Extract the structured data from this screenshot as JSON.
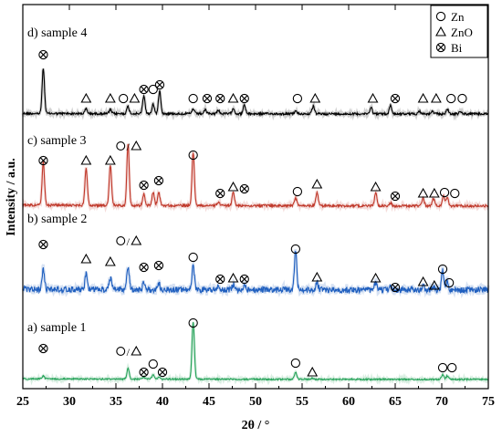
{
  "chart_data": {
    "type": "line",
    "xlabel": "2θ / °",
    "ylabel": "Intensity / a.u.",
    "xlim": [
      25,
      75
    ],
    "x_ticks": [
      "25",
      "30",
      "35",
      "40",
      "45",
      "50",
      "55",
      "60",
      "65",
      "70",
      "75"
    ],
    "y_ticks_shown": false,
    "grid": false,
    "legend_position": "top-right",
    "legend": [
      {
        "symbol": "circle",
        "label": "Zn"
      },
      {
        "symbol": "triangle",
        "label": "ZnO"
      },
      {
        "symbol": "crossed-circle",
        "label": "Bi"
      }
    ],
    "series": [
      {
        "name": "d) sample 4",
        "color": "#000000",
        "peaks": [
          {
            "x": 27.2,
            "h": 0.95,
            "phase": "Bi"
          },
          {
            "x": 31.8,
            "h": 0.1,
            "phase": "ZnO"
          },
          {
            "x": 34.4,
            "h": 0.08,
            "phase": "ZnO"
          },
          {
            "x": 36.3,
            "h": 0.15,
            "phase": "ZnO"
          },
          {
            "x": 38.0,
            "h": 0.38,
            "phase": "Bi"
          },
          {
            "x": 39.0,
            "h": 0.2,
            "phase": "Zn"
          },
          {
            "x": 39.7,
            "h": 0.48,
            "phase": "Bi"
          },
          {
            "x": 43.3,
            "h": 0.1,
            "phase": "Zn"
          },
          {
            "x": 44.6,
            "h": 0.08,
            "phase": "Bi"
          },
          {
            "x": 46.0,
            "h": 0.08,
            "phase": "Bi"
          },
          {
            "x": 47.6,
            "h": 0.12,
            "phase": "ZnO"
          },
          {
            "x": 48.8,
            "h": 0.18,
            "phase": "Bi"
          },
          {
            "x": 54.3,
            "h": 0.06,
            "phase": "Zn"
          },
          {
            "x": 56.2,
            "h": 0.16,
            "phase": "ZnO"
          },
          {
            "x": 62.4,
            "h": 0.14,
            "phase": "ZnO"
          },
          {
            "x": 64.5,
            "h": 0.18,
            "phase": "Bi"
          },
          {
            "x": 67.6,
            "h": 0.06,
            "phase": "ZnO"
          },
          {
            "x": 69.0,
            "h": 0.05,
            "phase": "ZnO"
          },
          {
            "x": 70.6,
            "h": 0.1,
            "phase": "Zn"
          },
          {
            "x": 72.0,
            "h": 0.05,
            "phase": "Zn"
          }
        ]
      },
      {
        "name": "c) sample 3",
        "color": "#c0392b",
        "peaks": [
          {
            "x": 27.2,
            "h": 0.45,
            "phase": "Bi"
          },
          {
            "x": 31.8,
            "h": 0.4,
            "phase": "ZnO"
          },
          {
            "x": 34.4,
            "h": 0.42,
            "phase": "ZnO"
          },
          {
            "x": 36.3,
            "h": 0.65,
            "phase": "ZnO"
          },
          {
            "x": 38.0,
            "h": 0.12,
            "phase": "Bi"
          },
          {
            "x": 39.0,
            "h": 0.14,
            "phase": "Zn"
          },
          {
            "x": 39.6,
            "h": 0.14,
            "phase": "Bi"
          },
          {
            "x": 43.3,
            "h": 0.56,
            "phase": "Zn"
          },
          {
            "x": 46.0,
            "h": 0.04,
            "phase": "Bi"
          },
          {
            "x": 47.6,
            "h": 0.14,
            "phase": "ZnO"
          },
          {
            "x": 54.3,
            "h": 0.08,
            "phase": "Zn"
          },
          {
            "x": 56.6,
            "h": 0.14,
            "phase": "ZnO"
          },
          {
            "x": 62.9,
            "h": 0.14,
            "phase": "ZnO"
          },
          {
            "x": 64.5,
            "h": 0.03,
            "phase": "Bi"
          },
          {
            "x": 68.0,
            "h": 0.08,
            "phase": "ZnO"
          },
          {
            "x": 69.1,
            "h": 0.08,
            "phase": "ZnO"
          },
          {
            "x": 70.2,
            "h": 0.1,
            "phase": "Zn"
          },
          {
            "x": 70.6,
            "h": 0.08,
            "phase": "Zn"
          }
        ]
      },
      {
        "name": "b) sample 2",
        "color": "#1f5fbf",
        "peaks": [
          {
            "x": 27.2,
            "h": 0.32,
            "phase": "Bi"
          },
          {
            "x": 31.8,
            "h": 0.24,
            "phase": "ZnO"
          },
          {
            "x": 34.4,
            "h": 0.18,
            "phase": "ZnO"
          },
          {
            "x": 36.3,
            "h": 0.36,
            "phase": "ZnO"
          },
          {
            "x": 38.0,
            "h": 0.1,
            "phase": "Bi"
          },
          {
            "x": 39.6,
            "h": 0.1,
            "phase": "Bi"
          },
          {
            "x": 43.3,
            "h": 0.36,
            "phase": "Zn"
          },
          {
            "x": 46.0,
            "h": 0.06,
            "phase": "Bi"
          },
          {
            "x": 47.6,
            "h": 0.08,
            "phase": "ZnO"
          },
          {
            "x": 48.8,
            "h": 0.06,
            "phase": "Bi"
          },
          {
            "x": 54.3,
            "h": 0.6,
            "phase": "Zn"
          },
          {
            "x": 56.6,
            "h": 0.12,
            "phase": "ZnO"
          },
          {
            "x": 62.9,
            "h": 0.1,
            "phase": "ZnO"
          },
          {
            "x": 64.5,
            "h": 0.05,
            "phase": "Bi"
          },
          {
            "x": 68.0,
            "h": 0.08,
            "phase": "ZnO"
          },
          {
            "x": 69.1,
            "h": 0.06,
            "phase": "ZnO"
          },
          {
            "x": 70.1,
            "h": 0.32,
            "phase": "Zn"
          },
          {
            "x": 70.6,
            "h": 0.14,
            "phase": "Zn"
          }
        ]
      },
      {
        "name": "a) sample 1",
        "color": "#27a35a",
        "peaks": [
          {
            "x": 27.2,
            "h": 0.05,
            "phase": "Bi"
          },
          {
            "x": 36.3,
            "h": 0.18,
            "phase": "ZnO"
          },
          {
            "x": 38.0,
            "h": 0.03,
            "phase": "Bi"
          },
          {
            "x": 39.0,
            "h": 0.07,
            "phase": "Zn"
          },
          {
            "x": 39.6,
            "h": 0.03,
            "phase": "Bi"
          },
          {
            "x": 43.3,
            "h": 1.0,
            "phase": "Zn"
          },
          {
            "x": 54.3,
            "h": 0.12,
            "phase": "Zn"
          },
          {
            "x": 56.1,
            "h": 0.02,
            "phase": "ZnO"
          },
          {
            "x": 70.1,
            "h": 0.08,
            "phase": "Zn"
          },
          {
            "x": 70.6,
            "h": 0.06,
            "phase": "Zn"
          }
        ]
      }
    ],
    "annotations": {
      "d) sample 4": [
        {
          "x": 27.2,
          "symbol": "crossed-circle"
        },
        {
          "x": 31.8,
          "symbol": "triangle"
        },
        {
          "x": 34.4,
          "symbol": "triangle"
        },
        {
          "x": 35.8,
          "symbol": "circle"
        },
        {
          "x": 37.0,
          "symbol": "triangle"
        },
        {
          "x": 38.0,
          "symbol": "crossed-circle"
        },
        {
          "x": 39.0,
          "symbol": "circle"
        },
        {
          "x": 39.7,
          "symbol": "crossed-circle"
        },
        {
          "x": 43.3,
          "symbol": "circle"
        },
        {
          "x": 44.8,
          "symbol": "crossed-circle"
        },
        {
          "x": 46.2,
          "symbol": "crossed-circle"
        },
        {
          "x": 47.6,
          "symbol": "triangle"
        },
        {
          "x": 48.8,
          "symbol": "crossed-circle"
        },
        {
          "x": 54.5,
          "symbol": "circle"
        },
        {
          "x": 56.4,
          "symbol": "triangle"
        },
        {
          "x": 62.6,
          "symbol": "triangle"
        },
        {
          "x": 65.0,
          "symbol": "crossed-circle"
        },
        {
          "x": 68.0,
          "symbol": "triangle"
        },
        {
          "x": 69.4,
          "symbol": "triangle"
        },
        {
          "x": 71.0,
          "symbol": "circle"
        },
        {
          "x": 72.2,
          "symbol": "circle"
        }
      ],
      "c) sample 3": [
        {
          "x": 27.2,
          "symbol": "crossed-circle"
        },
        {
          "x": 31.8,
          "symbol": "triangle"
        },
        {
          "x": 34.4,
          "symbol": "triangle"
        },
        {
          "x": 36.3,
          "symbol": "circle-triangle"
        },
        {
          "x": 38.0,
          "symbol": "crossed-circle"
        },
        {
          "x": 39.6,
          "symbol": "crossed-circle"
        },
        {
          "x": 43.3,
          "symbol": "circle"
        },
        {
          "x": 46.2,
          "symbol": "crossed-circle"
        },
        {
          "x": 47.6,
          "symbol": "triangle"
        },
        {
          "x": 48.8,
          "symbol": "crossed-circle"
        },
        {
          "x": 54.5,
          "symbol": "circle"
        },
        {
          "x": 56.6,
          "symbol": "triangle"
        },
        {
          "x": 62.9,
          "symbol": "triangle"
        },
        {
          "x": 65.0,
          "symbol": "crossed-circle"
        },
        {
          "x": 68.0,
          "symbol": "triangle"
        },
        {
          "x": 69.2,
          "symbol": "triangle"
        },
        {
          "x": 70.3,
          "symbol": "circle"
        },
        {
          "x": 71.4,
          "symbol": "circle"
        }
      ],
      "b) sample 2": [
        {
          "x": 27.2,
          "symbol": "crossed-circle"
        },
        {
          "x": 31.8,
          "symbol": "triangle"
        },
        {
          "x": 34.4,
          "symbol": "triangle"
        },
        {
          "x": 36.3,
          "symbol": "circle-triangle"
        },
        {
          "x": 38.0,
          "symbol": "crossed-circle"
        },
        {
          "x": 39.6,
          "symbol": "crossed-circle"
        },
        {
          "x": 43.3,
          "symbol": "circle"
        },
        {
          "x": 46.2,
          "symbol": "crossed-circle"
        },
        {
          "x": 47.6,
          "symbol": "triangle"
        },
        {
          "x": 48.8,
          "symbol": "crossed-circle"
        },
        {
          "x": 54.3,
          "symbol": "circle"
        },
        {
          "x": 56.6,
          "symbol": "triangle"
        },
        {
          "x": 62.9,
          "symbol": "triangle"
        },
        {
          "x": 65.0,
          "symbol": "crossed-circle"
        },
        {
          "x": 68.0,
          "symbol": "triangle"
        },
        {
          "x": 69.2,
          "symbol": "triangle"
        },
        {
          "x": 70.1,
          "symbol": "circle"
        },
        {
          "x": 70.8,
          "symbol": "circle"
        }
      ],
      "a) sample 1": [
        {
          "x": 27.2,
          "symbol": "crossed-circle"
        },
        {
          "x": 36.3,
          "symbol": "circle-triangle"
        },
        {
          "x": 38.0,
          "symbol": "crossed-circle"
        },
        {
          "x": 39.0,
          "symbol": "circle"
        },
        {
          "x": 40.0,
          "symbol": "crossed-circle"
        },
        {
          "x": 43.3,
          "symbol": "circle"
        },
        {
          "x": 54.3,
          "symbol": "circle"
        },
        {
          "x": 56.1,
          "symbol": "triangle"
        },
        {
          "x": 70.1,
          "symbol": "circle"
        },
        {
          "x": 71.1,
          "symbol": "circle"
        }
      ]
    }
  }
}
